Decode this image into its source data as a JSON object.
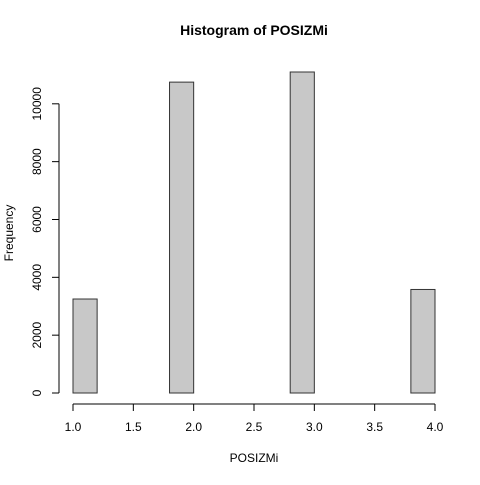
{
  "chart_data": {
    "type": "bar",
    "title": "Histogram of POSIZMi",
    "xlabel": "POSIZMi",
    "ylabel": "Frequency",
    "bins": [
      {
        "start": 1.0,
        "end": 1.2,
        "count": 3250
      },
      {
        "start": 1.2,
        "end": 1.4,
        "count": 0
      },
      {
        "start": 1.4,
        "end": 1.6,
        "count": 0
      },
      {
        "start": 1.6,
        "end": 1.8,
        "count": 0
      },
      {
        "start": 1.8,
        "end": 2.0,
        "count": 10750
      },
      {
        "start": 2.0,
        "end": 2.2,
        "count": 0
      },
      {
        "start": 2.2,
        "end": 2.4,
        "count": 0
      },
      {
        "start": 2.4,
        "end": 2.6,
        "count": 0
      },
      {
        "start": 2.6,
        "end": 2.8,
        "count": 0
      },
      {
        "start": 2.8,
        "end": 3.0,
        "count": 11100
      },
      {
        "start": 3.0,
        "end": 3.2,
        "count": 0
      },
      {
        "start": 3.2,
        "end": 3.4,
        "count": 0
      },
      {
        "start": 3.4,
        "end": 3.6,
        "count": 0
      },
      {
        "start": 3.6,
        "end": 3.8,
        "count": 0
      },
      {
        "start": 3.8,
        "end": 4.0,
        "count": 3580
      }
    ],
    "xlim": [
      1.0,
      4.0
    ],
    "ylim": [
      0,
      11100
    ],
    "x_ticks": [
      "1.0",
      "1.5",
      "2.0",
      "2.5",
      "3.0",
      "3.5",
      "4.0"
    ],
    "y_ticks": [
      "0",
      "2000",
      "4000",
      "6000",
      "8000",
      "10000"
    ],
    "bar_fill": "#c8c8c8",
    "bar_stroke": "#333333",
    "grid": false,
    "legend": "none"
  }
}
